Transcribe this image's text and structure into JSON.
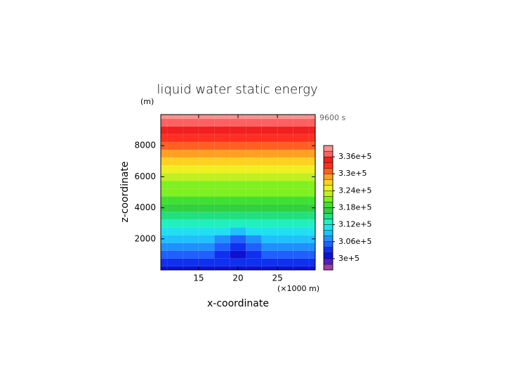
{
  "chart_data": {
    "type": "contour",
    "title": "liquid water static energy",
    "y_unit": "(m)",
    "time_label": "9600 s",
    "x_label": "x-coordinate",
    "x_unit": "(×1000 m)",
    "y_label": "z-coordinate",
    "xlim": [
      10.2,
      29.8
    ],
    "xticks": [
      15,
      20,
      25
    ],
    "ylim": [
      0,
      10000
    ],
    "yticks": [
      2000,
      4000,
      6000,
      8000
    ],
    "x": [
      10,
      12,
      14,
      16,
      18,
      20,
      22,
      24,
      26,
      28,
      30
    ],
    "y": [
      0,
      500,
      1000,
      1500,
      2000,
      2500,
      3000,
      3500,
      4000,
      4500,
      5000,
      5500,
      6000,
      6500,
      7000,
      7500,
      8000,
      8500,
      9000,
      9500,
      10000
    ],
    "values": [
      [
        301000,
        301000,
        301000,
        301000,
        301000,
        301000,
        301000,
        301000,
        301000,
        301000,
        301000
      ],
      [
        302900,
        302900,
        302900,
        302900,
        302900,
        302900,
        302900,
        302900,
        302900,
        302900,
        302900
      ],
      [
        304800,
        304800,
        304800,
        304800,
        303300,
        301800,
        303300,
        304800,
        304800,
        304800,
        304800
      ],
      [
        306700,
        306700,
        306700,
        306700,
        305200,
        303700,
        305200,
        306700,
        306700,
        306700,
        306700
      ],
      [
        308600,
        308600,
        308600,
        308600,
        307100,
        305600,
        307100,
        308600,
        308600,
        308600,
        308600
      ],
      [
        310500,
        310500,
        310500,
        310500,
        310500,
        309000,
        310500,
        310500,
        310500,
        310500,
        310500
      ],
      [
        312400,
        312400,
        312400,
        312400,
        312400,
        312400,
        312400,
        312400,
        312400,
        312400,
        312400
      ],
      [
        314300,
        314300,
        314300,
        314300,
        314300,
        314300,
        314300,
        314300,
        314300,
        314300,
        314300
      ],
      [
        316200,
        316200,
        316200,
        316200,
        316200,
        316200,
        316200,
        316200,
        316200,
        316200,
        316200
      ],
      [
        318100,
        318100,
        318100,
        318100,
        318100,
        318100,
        318100,
        318100,
        318100,
        318100,
        318100
      ],
      [
        320000,
        320000,
        320000,
        320000,
        320000,
        320000,
        320000,
        320000,
        320000,
        320000,
        320000
      ],
      [
        321900,
        321900,
        321900,
        321900,
        321900,
        321900,
        321900,
        321900,
        321900,
        321900,
        321900
      ],
      [
        323800,
        323800,
        323800,
        323800,
        323800,
        323800,
        323800,
        323800,
        323800,
        323800,
        323800
      ],
      [
        325700,
        325700,
        325700,
        325700,
        325700,
        325700,
        325700,
        325700,
        325700,
        325700,
        325700
      ],
      [
        327600,
        327600,
        327600,
        327600,
        327600,
        327600,
        327600,
        327600,
        327600,
        327600,
        327600
      ],
      [
        329500,
        329500,
        329500,
        329500,
        329500,
        329500,
        329500,
        329500,
        329500,
        329500,
        329500
      ],
      [
        331400,
        331400,
        331400,
        331400,
        331400,
        331400,
        331400,
        331400,
        331400,
        331400,
        331400
      ],
      [
        333300,
        333300,
        333300,
        333300,
        333300,
        333300,
        333300,
        333300,
        333300,
        333300,
        333300
      ],
      [
        335200,
        335200,
        335200,
        335200,
        335200,
        335200,
        335200,
        335200,
        335200,
        335200,
        335200
      ],
      [
        337100,
        337100,
        337100,
        337100,
        337100,
        337100,
        337100,
        337100,
        337100,
        337100,
        337100
      ],
      [
        339000,
        339000,
        339000,
        339000,
        339000,
        339000,
        339000,
        339000,
        339000,
        339000,
        339000
      ]
    ],
    "levels": [
      296000,
      298000,
      300000,
      302000,
      304000,
      306000,
      308000,
      310000,
      312000,
      314000,
      316000,
      318000,
      320000,
      322000,
      324000,
      326000,
      328000,
      330000,
      332000,
      334000,
      336000,
      338000,
      340000
    ],
    "colors": [
      "#a040a0",
      "#5020c0",
      "#1010d0",
      "#1030f0",
      "#2060ff",
      "#2090ff",
      "#20c0ff",
      "#20e0f0",
      "#20f0c0",
      "#20e080",
      "#30d040",
      "#40e030",
      "#80f020",
      "#c0f020",
      "#f0f020",
      "#ffd020",
      "#ffa020",
      "#ff6020",
      "#ff3020",
      "#f02020",
      "#ff6060",
      "#ff9090"
    ],
    "cticks": [
      {
        "value": 300000,
        "label": "3e+5"
      },
      {
        "value": 306000,
        "label": "3.06e+5"
      },
      {
        "value": 312000,
        "label": "3.12e+5"
      },
      {
        "value": 318000,
        "label": "3.18e+5"
      },
      {
        "value": 324000,
        "label": "3.24e+5"
      },
      {
        "value": 330000,
        "label": "3.3e+5"
      },
      {
        "value": 336000,
        "label": "3.36e+5"
      }
    ]
  }
}
